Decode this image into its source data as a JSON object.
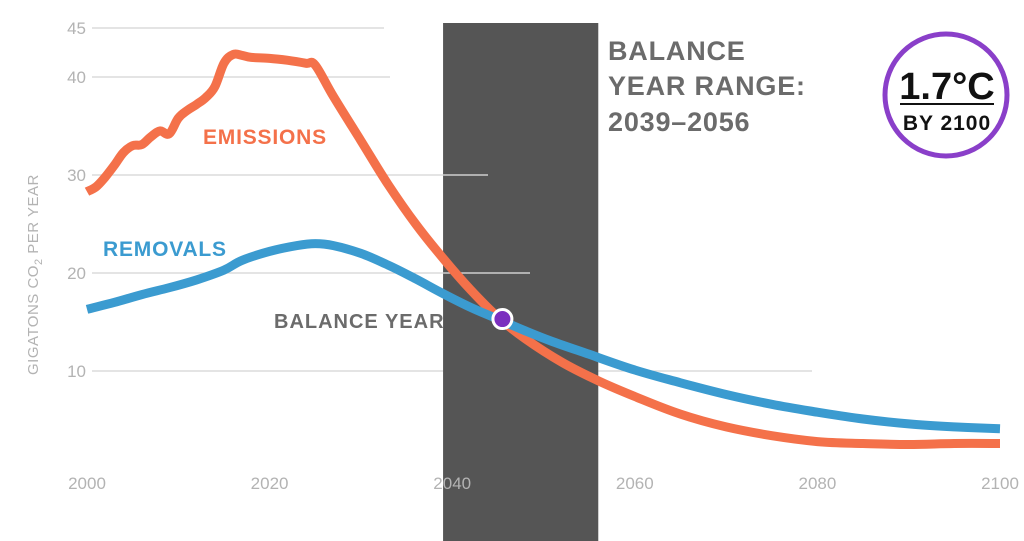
{
  "chart_data": {
    "type": "line",
    "ylabel_main": "GIGATONS CO",
    "ylabel_sub": "2",
    "ylabel_rest": " PER YEAR",
    "xlim": [
      2000,
      2100
    ],
    "ylim": [
      0,
      45
    ],
    "x_ticks": [
      "2000",
      "2020",
      "2040",
      "2060",
      "2080",
      "2100"
    ],
    "x_tick_values": [
      2000,
      2020,
      2040,
      2060,
      2080,
      2100
    ],
    "y_ticks": [
      "10",
      "20",
      "30",
      "40",
      "45"
    ],
    "y_tick_values": [
      10,
      20,
      30,
      40,
      45
    ],
    "series": [
      {
        "name": "EMISSIONS",
        "color": "#f4714a",
        "x": [
          2000,
          2001,
          2002,
          2003,
          2004,
          2005,
          2006,
          2007,
          2008,
          2009,
          2010,
          2011,
          2012,
          2013,
          2014,
          2015,
          2016,
          2017,
          2018,
          2020,
          2022,
          2024,
          2025,
          2027,
          2030,
          2033,
          2036,
          2039,
          2042,
          2045,
          2048,
          2052,
          2056,
          2060,
          2065,
          2070,
          2075,
          2080,
          2085,
          2090,
          2095,
          2100
        ],
        "values": [
          28.3,
          28.8,
          29.8,
          31.0,
          32.3,
          33.0,
          33.1,
          33.9,
          34.5,
          34.2,
          35.8,
          36.6,
          37.2,
          37.9,
          39.0,
          41.4,
          42.3,
          42.2,
          42.0,
          41.9,
          41.7,
          41.4,
          41.2,
          38.0,
          33.5,
          29.0,
          25.0,
          21.5,
          18.3,
          15.5,
          13.3,
          10.9,
          9.0,
          7.4,
          5.6,
          4.3,
          3.4,
          2.8,
          2.6,
          2.5,
          2.6,
          2.6
        ]
      },
      {
        "name": "REMOVALS",
        "color": "#3b9bd0",
        "x": [
          2000,
          2003,
          2006,
          2009,
          2012,
          2015,
          2017,
          2020,
          2023,
          2025,
          2027,
          2030,
          2033,
          2036,
          2039,
          2042,
          2045,
          2048,
          2051,
          2055,
          2060,
          2065,
          2070,
          2075,
          2080,
          2085,
          2090,
          2095,
          2100
        ],
        "values": [
          16.3,
          17.0,
          17.8,
          18.5,
          19.3,
          20.3,
          21.3,
          22.2,
          22.8,
          23.0,
          22.8,
          22.0,
          20.8,
          19.4,
          17.9,
          16.5,
          15.3,
          14.1,
          13.0,
          11.7,
          10.1,
          8.8,
          7.6,
          6.6,
          5.8,
          5.1,
          4.6,
          4.3,
          4.1
        ]
      }
    ],
    "series_labels": {
      "emissions": "EMISSIONS",
      "removals": "REMOVALS"
    },
    "balance_year_label": "BALANCE YEAR",
    "balance_point": {
      "x": 2045.5,
      "y": 15.3,
      "color": "#7b2fbf"
    },
    "balance_range": {
      "start": 2039,
      "end": 2056,
      "color": "#555555",
      "title_line1": "BALANCE",
      "title_line2": "YEAR RANGE:",
      "title_line3": "2039–2056"
    },
    "badge": {
      "main": "1.7°C",
      "sub": "BY 2100",
      "ring_color": "#8a3fc9"
    },
    "grid": true
  }
}
